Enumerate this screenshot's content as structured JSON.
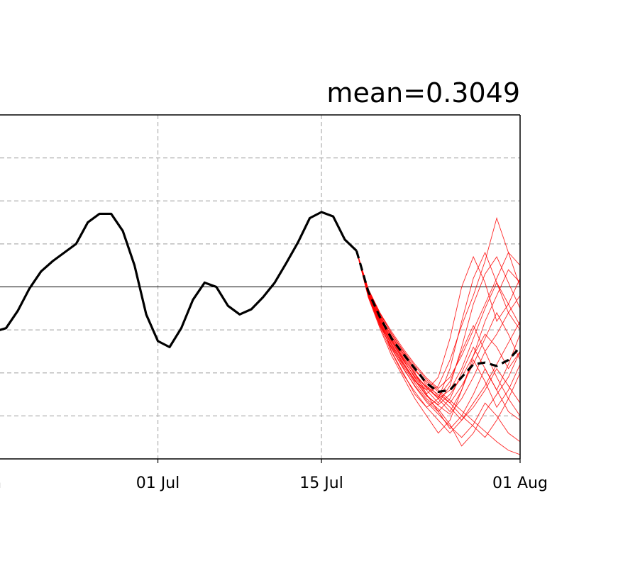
{
  "chart_data": {
    "type": "line",
    "title": "mean=0.3049",
    "xlabel": "",
    "ylabel": "",
    "x_start": "2024-06-17",
    "x_end": "2024-08-01",
    "xlim": [
      "2024-06-17",
      "2024-08-01"
    ],
    "ylim": [
      -2,
      2
    ],
    "x_ticks": [
      {
        "date": "2024-07-01",
        "label": "01 Jul"
      },
      {
        "date": "2024-07-15",
        "label": "15 Jul"
      },
      {
        "date": "2024-08-01",
        "label": "01 Aug"
      }
    ],
    "partial_tick": {
      "date": "2024-06-17",
      "label": "n"
    },
    "y_gridlines": [
      -1.5,
      -1,
      -0.5,
      0.5,
      1,
      1.5
    ],
    "x_gridlines": [
      "2024-07-01",
      "2024-07-15"
    ],
    "grid": true,
    "zero_line": 0,
    "observed": {
      "color": "#000000",
      "x": [
        "2024-06-17",
        "2024-06-18",
        "2024-06-19",
        "2024-06-20",
        "2024-06-21",
        "2024-06-22",
        "2024-06-23",
        "2024-06-24",
        "2024-06-25",
        "2024-06-26",
        "2024-06-27",
        "2024-06-28",
        "2024-06-29",
        "2024-06-30",
        "2024-07-01",
        "2024-07-02",
        "2024-07-03",
        "2024-07-04",
        "2024-07-05",
        "2024-07-06",
        "2024-07-07",
        "2024-07-08",
        "2024-07-09",
        "2024-07-10",
        "2024-07-11",
        "2024-07-12",
        "2024-07-13",
        "2024-07-14",
        "2024-07-15",
        "2024-07-16",
        "2024-07-17",
        "2024-07-18"
      ],
      "y": [
        -0.52,
        -0.48,
        -0.28,
        -0.02,
        0.18,
        0.3,
        0.4,
        0.5,
        0.75,
        0.85,
        0.85,
        0.65,
        0.25,
        -0.32,
        -0.63,
        -0.7,
        -0.48,
        -0.15,
        0.05,
        0.0,
        -0.22,
        -0.32,
        -0.26,
        -0.12,
        0.05,
        0.28,
        0.52,
        0.8,
        0.87,
        0.82,
        0.55,
        0.42
      ]
    },
    "ensemble_mean": {
      "color": "#000000",
      "style": "dashed",
      "x": [
        "2024-07-18",
        "2024-07-19",
        "2024-07-20",
        "2024-07-21",
        "2024-07-22",
        "2024-07-23",
        "2024-07-24",
        "2024-07-25",
        "2024-07-26",
        "2024-07-27",
        "2024-07-28",
        "2024-07-29",
        "2024-07-30",
        "2024-07-31",
        "2024-08-01"
      ],
      "y": [
        0.42,
        -0.05,
        -0.35,
        -0.6,
        -0.78,
        -0.95,
        -1.12,
        -1.22,
        -1.2,
        -1.05,
        -0.9,
        -0.88,
        -0.92,
        -0.85,
        -0.7
      ]
    },
    "ensemble_members": {
      "color": "#ff0000",
      "x": [
        "2024-07-18",
        "2024-07-19",
        "2024-07-20",
        "2024-07-21",
        "2024-07-22",
        "2024-07-23",
        "2024-07-24",
        "2024-07-25",
        "2024-07-26",
        "2024-07-27",
        "2024-07-28",
        "2024-07-29",
        "2024-07-30",
        "2024-07-31",
        "2024-08-01"
      ],
      "members": [
        [
          0.42,
          -0.1,
          -0.45,
          -0.7,
          -0.9,
          -1.1,
          -1.2,
          -1.05,
          -0.6,
          0.0,
          0.35,
          0.05,
          -0.4,
          -0.2,
          0.1
        ],
        [
          0.42,
          -0.05,
          -0.4,
          -0.75,
          -1.0,
          -1.25,
          -1.4,
          -1.3,
          -0.95,
          -0.4,
          0.1,
          0.4,
          0.05,
          -0.3,
          -0.5
        ],
        [
          0.42,
          -0.08,
          -0.38,
          -0.62,
          -0.85,
          -1.05,
          -1.2,
          -1.35,
          -1.15,
          -0.7,
          -0.2,
          0.15,
          0.35,
          0.05,
          -0.25
        ],
        [
          0.42,
          -0.02,
          -0.3,
          -0.55,
          -0.75,
          -0.95,
          -1.15,
          -1.3,
          -1.45,
          -1.2,
          -0.8,
          -0.4,
          -0.1,
          0.2,
          0.05
        ],
        [
          0.42,
          -0.12,
          -0.48,
          -0.8,
          -1.05,
          -1.3,
          -1.5,
          -1.7,
          -1.55,
          -1.2,
          -0.85,
          -1.1,
          -1.4,
          -1.2,
          -0.9
        ],
        [
          0.42,
          -0.06,
          -0.36,
          -0.6,
          -0.82,
          -1.02,
          -1.18,
          -1.28,
          -1.1,
          -0.75,
          -0.45,
          -0.75,
          -1.05,
          -1.3,
          -1.5
        ],
        [
          0.42,
          -0.04,
          -0.32,
          -0.58,
          -0.8,
          -1.0,
          -1.25,
          -1.45,
          -1.65,
          -1.5,
          -1.25,
          -0.95,
          -1.2,
          -1.45,
          -1.55
        ],
        [
          0.42,
          -0.09,
          -0.42,
          -0.68,
          -0.92,
          -1.12,
          -1.3,
          -1.42,
          -1.6,
          -1.85,
          -1.7,
          -1.45,
          -1.25,
          -1.05,
          -0.75
        ],
        [
          0.42,
          -0.07,
          -0.39,
          -0.64,
          -0.86,
          -1.04,
          -1.16,
          -1.25,
          -1.35,
          -1.5,
          -1.62,
          -1.75,
          -1.55,
          -1.3,
          -1.0
        ],
        [
          0.42,
          -0.03,
          -0.3,
          -0.52,
          -0.72,
          -0.9,
          -1.06,
          -1.18,
          -1.05,
          -0.8,
          -0.5,
          -0.2,
          0.1,
          0.4,
          0.25
        ],
        [
          0.42,
          -0.1,
          -0.44,
          -0.72,
          -0.95,
          -1.15,
          -1.32,
          -1.45,
          -1.3,
          -1.0,
          -0.7,
          -0.95,
          -1.2,
          -0.9,
          -0.55
        ],
        [
          0.42,
          -0.05,
          -0.34,
          -0.58,
          -0.78,
          -0.98,
          -1.1,
          -1.22,
          -1.35,
          -1.15,
          -0.9,
          -0.6,
          -0.3,
          -0.55,
          -0.85
        ],
        [
          0.42,
          -0.11,
          -0.46,
          -0.76,
          -1.02,
          -1.22,
          -1.4,
          -1.55,
          -1.7,
          -1.55,
          -1.35,
          -1.15,
          -0.9,
          -0.65,
          -0.4
        ],
        [
          0.42,
          -0.06,
          -0.37,
          -0.63,
          -0.84,
          -1.06,
          -1.24,
          -1.15,
          -0.85,
          -0.45,
          -0.1,
          0.3,
          0.8,
          0.4,
          0.0
        ],
        [
          0.42,
          -0.08,
          -0.4,
          -0.66,
          -0.88,
          -1.08,
          -1.26,
          -1.38,
          -1.48,
          -1.3,
          -1.05,
          -0.75,
          -0.55,
          -0.3,
          -0.1
        ],
        [
          0.42,
          -0.04,
          -0.33,
          -0.57,
          -0.77,
          -0.96,
          -1.12,
          -1.27,
          -1.4,
          -1.55,
          -1.4,
          -1.2,
          -0.95,
          -1.15,
          -1.35
        ],
        [
          0.42,
          -0.09,
          -0.43,
          -0.71,
          -0.94,
          -1.16,
          -1.34,
          -1.48,
          -1.62,
          -1.75,
          -1.6,
          -1.35,
          -1.5,
          -1.7,
          -1.8
        ],
        [
          0.42,
          -0.05,
          -0.35,
          -0.61,
          -0.83,
          -1.01,
          -1.17,
          -1.3,
          -1.2,
          -0.95,
          -0.6,
          -0.25,
          0.05,
          -0.2,
          -0.45
        ],
        [
          0.42,
          -0.07,
          -0.41,
          -0.67,
          -0.89,
          -1.09,
          -1.27,
          -1.37,
          -1.25,
          -1.05,
          -0.8,
          -0.55,
          -0.7,
          -0.95,
          -0.75
        ],
        [
          0.42,
          -0.03,
          -0.31,
          -0.54,
          -0.74,
          -0.92,
          -1.08,
          -1.2,
          -1.32,
          -1.44,
          -1.56,
          -1.68,
          -1.8,
          -1.9,
          -1.95
        ]
      ]
    }
  }
}
